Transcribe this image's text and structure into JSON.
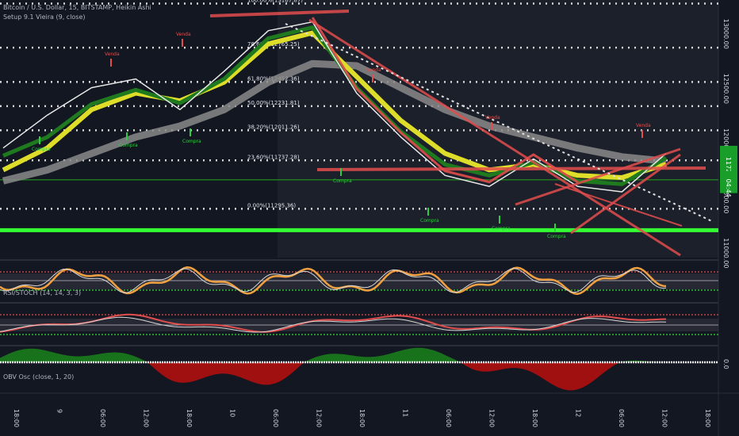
{
  "title": "Bitcoin / U.S. Dollar, 15, BITSTAMP, Heikin Ashi",
  "indicators": {
    "setup": "Setup 9.1 Vieira (9, close)",
    "rsi_stoch": "RSI/STOCH (14, 14, 3, 3)",
    "obv": "OBV Osc (close, 1, 20)"
  },
  "colors": {
    "background": "#131722",
    "shaded": "#1f2330",
    "yellow": "#dede2a",
    "green_ma": "#1f7a1f",
    "gray_ma": "#8a8a8a",
    "red": "#e24d4d",
    "bright_green": "#33ff33",
    "orange": "#f0a040",
    "obv_red": "#b01010",
    "obv_green": "#1a8a1a"
  },
  "price_axis": {
    "ticks": [
      "13000.00",
      "12500.00",
      "12000.00",
      "11500.00",
      "11000.00"
    ],
    "current_price_tag": "11728.64",
    "secondary_tag": "04:44"
  },
  "osc_axis": {
    "ticks": [
      "0.0"
    ]
  },
  "time_axis": {
    "ticks": [
      "18:00",
      "9",
      "06:00",
      "12:00",
      "18:00",
      "10",
      "06:00",
      "12:00",
      "18:00",
      "11",
      "06:00",
      "12:00",
      "18:00",
      "12",
      "06:00",
      "12:00",
      "18:00"
    ]
  },
  "fib_levels": [
    {
      "label": "100.00%(13167.87)",
      "price": 13167.87
    },
    {
      "label": "78.60%(12765.25)",
      "price": 12765.25
    },
    {
      "label": "61.80%(12452.36)",
      "price": 12452.36
    },
    {
      "label": "50.00%(12231.81)",
      "price": 12231.81
    },
    {
      "label": "38.20%(12011.26)",
      "price": 12011.26
    },
    {
      "label": "23.60%(11737.28)",
      "price": 11737.28
    },
    {
      "label": "0.00%(11295.36)",
      "price": 11295.36
    }
  ],
  "signal_labels": {
    "buy": "Compra",
    "sell": "Venda"
  },
  "chart_data": {
    "type": "line",
    "title": "Bitcoin / U.S. Dollar, 15, BITSTAMP, Heikin Ashi",
    "x": [
      "8 18:00",
      "9 00:00",
      "9 06:00",
      "9 12:00",
      "9 18:00",
      "10 00:00",
      "10 06:00",
      "10 12:00",
      "10 18:00",
      "11 00:00",
      "11 06:00",
      "11 12:00",
      "11 18:00",
      "12 00:00",
      "12 06:00",
      "12 12:00"
    ],
    "ylim": [
      10850,
      13200
    ],
    "series": [
      {
        "values": [
          11850,
          12150,
          12400,
          12480,
          12200,
          12550,
          12920,
          13000,
          12350,
          11950,
          11600,
          11500,
          11750,
          11500,
          11450,
          11800
        ]
      },
      {
        "values": [
          11650,
          11850,
          12200,
          12350,
          12280,
          12450,
          12800,
          12900,
          12500,
          12100,
          11800,
          11650,
          11700,
          11600,
          11580,
          11700
        ]
      },
      {
        "values": [
          11780,
          11950,
          12250,
          12380,
          12260,
          12480,
          12850,
          12950,
          12400,
          12000,
          11700,
          11600,
          11720,
          11550,
          11520,
          11760
        ]
      },
      {
        "values": [
          11550,
          11650,
          11800,
          11950,
          12050,
          12200,
          12450,
          12620,
          12600,
          12400,
          12200,
          12050,
          11950,
          11850,
          11770,
          11730
        ]
      }
    ],
    "horizontal_lines": [
      {
        "price": 11100,
        "color": "#33ff33"
      },
      {
        "price": 11560,
        "color": "#1f7a1f"
      }
    ]
  }
}
